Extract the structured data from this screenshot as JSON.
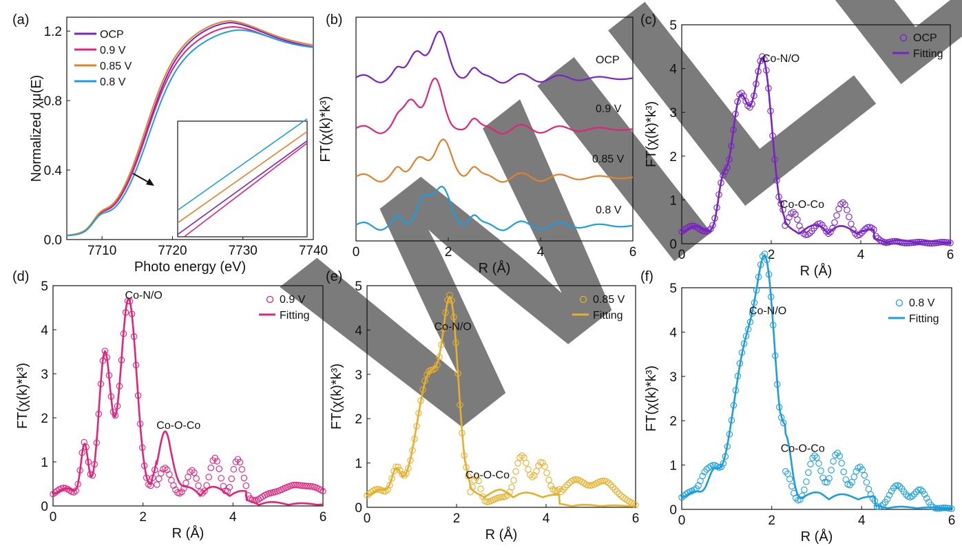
{
  "watermark": "WILEY",
  "chart_data": [
    {
      "id": "a",
      "panel_label": "(a)",
      "type": "line",
      "title": "",
      "xlabel": "Photo energy (eV)",
      "ylabel": "Normalized χμ(E)",
      "xlim": [
        7705,
        7740
      ],
      "ylim": [
        0.0,
        1.28
      ],
      "xticks": [
        "7710",
        "7720",
        "7730",
        "7740"
      ],
      "yticks": [
        "0.0",
        "0.4",
        "0.8",
        "1.2"
      ],
      "legend_position": "top-left",
      "series": [
        {
          "name": "OCP",
          "color": "#7a22c4",
          "edge": 7716.3,
          "plateau": 1.12,
          "peak": 1.155,
          "peakE": 7728.3,
          "end": 1.04
        },
        {
          "name": "0.9 V",
          "color": "#e0237d",
          "edge": 7716.3,
          "plateau": 1.09,
          "peak": 1.13,
          "peakE": 7728.6,
          "end": 1.04
        },
        {
          "name": "0.85 V",
          "color": "#e0822b",
          "edge": 7716.1,
          "plateau": 1.13,
          "peak": 1.165,
          "peakE": 7728.2,
          "end": 1.05
        },
        {
          "name": "0.8 V",
          "color": "#1a9ee0",
          "edge": 7716.6,
          "plateau": 1.07,
          "peak": 1.11,
          "peakE": 7729.5,
          "end": 1.04
        }
      ],
      "annotations": [
        "arrow pointing to zoomed edge region",
        "inset: magnified absorption edge"
      ]
    },
    {
      "id": "b",
      "panel_label": "(b)",
      "type": "line",
      "xlabel": "R (Å)",
      "ylabel": "FT(χ(k)*k³)",
      "xlim": [
        0,
        6
      ],
      "xticks": [
        "0",
        "2",
        "4",
        "6"
      ],
      "series": [
        {
          "name": "OCP",
          "color": "#7a22c4",
          "offset": 3.2,
          "s1": 0.6,
          "p1": 1.3,
          "s2": 0.9,
          "p2": 1.82
        },
        {
          "name": "0.9 V",
          "color": "#e0237d",
          "offset": 2.2,
          "s1": 0.65,
          "p1": 1.2,
          "s2": 0.95,
          "p2": 1.72
        },
        {
          "name": "0.85 V",
          "color": "#e0822b",
          "offset": 1.25,
          "s1": 0.45,
          "p1": 1.35,
          "s2": 0.75,
          "p2": 1.9
        },
        {
          "name": "0.8 V",
          "color": "#1a9ee0",
          "offset": 0.3,
          "s1": 0.55,
          "p1": 1.45,
          "s2": 0.75,
          "p2": 1.88
        }
      ]
    },
    {
      "id": "c",
      "panel_label": "(c)",
      "type": "line",
      "xlabel": "R (Å)",
      "ylabel": "FT(χ(k)*k³)",
      "xlim": [
        0,
        6
      ],
      "ylim": [
        0,
        5
      ],
      "xticks": [
        "0",
        "2",
        "4",
        "6"
      ],
      "yticks": [
        "0",
        "1",
        "2",
        "3",
        "4",
        "5"
      ],
      "color": "#7a22c4",
      "legend": [
        "OCP",
        "Fitting"
      ],
      "peak_label": "Co-N/O",
      "peak_label_at": [
        1.8,
        4.15
      ],
      "shell_label": "Co-O-Co",
      "shell_label_at": [
        2.2,
        0.82
      ],
      "legend_position": "top-right",
      "peaks": [
        [
          1.3,
          3.0,
          0.2
        ],
        [
          1.82,
          3.88,
          0.2
        ],
        [
          0.9,
          0.85,
          0.1
        ]
      ],
      "ripple_amp": 0.28,
      "ripple_center": 3.2,
      "exp_bumps": [
        [
          2.5,
          0.55,
          0.12
        ],
        [
          3.6,
          0.72,
          0.14
        ],
        [
          3.1,
          0.25,
          0.12
        ],
        [
          4.2,
          0.2,
          0.15
        ]
      ]
    },
    {
      "id": "d",
      "panel_label": "(d)",
      "type": "line",
      "xlabel": "R (Å)",
      "ylabel": "FT(χ(k)*k³)",
      "xlim": [
        0,
        6
      ],
      "ylim": [
        0,
        5
      ],
      "xticks": [
        "0",
        "2",
        "4",
        "6"
      ],
      "yticks": [
        "0",
        "1",
        "2",
        "3",
        "4",
        "5"
      ],
      "color": "#e0237d",
      "legend": [
        "0.9 V",
        "Fitting"
      ],
      "peak_label": "Co-N/O",
      "peak_label_at": [
        1.6,
        4.7
      ],
      "shell_label": "Co-O-Co",
      "shell_label_at": [
        2.3,
        1.75
      ],
      "legend_position": "top-right",
      "peaks": [
        [
          1.15,
          3.2,
          0.13
        ],
        [
          1.68,
          4.45,
          0.18
        ],
        [
          2.5,
          1.55,
          0.15
        ],
        [
          0.7,
          1.15,
          0.08
        ]
      ],
      "ripple_amp": 0.3,
      "ripple_center": 3.3,
      "exp_bumps": [
        [
          3.6,
          0.85,
          0.12
        ],
        [
          4.1,
          0.85,
          0.12
        ],
        [
          3.1,
          0.6,
          0.12
        ],
        [
          5.5,
          0.45,
          0.6
        ]
      ]
    },
    {
      "id": "e",
      "panel_label": "(e)",
      "type": "line",
      "xlabel": "R (Å)",
      "ylabel": "FT(χ(k)*k³)",
      "xlim": [
        0,
        6
      ],
      "ylim": [
        0,
        5
      ],
      "xticks": [
        "0",
        "2",
        "4",
        "6"
      ],
      "yticks": [
        "0",
        "1",
        "2",
        "3",
        "4",
        "5"
      ],
      "color": "#e6b02a",
      "legend": [
        "0.85 V",
        "Fitting"
      ],
      "peak_label": "Co-N/O",
      "peak_label_at": [
        1.5,
        4.0
      ],
      "shell_label": "Co-O-Co",
      "shell_label_at": [
        2.2,
        0.65
      ],
      "legend_position": "top-right",
      "peaks": [
        [
          1.4,
          2.75,
          0.28
        ],
        [
          1.88,
          3.8,
          0.17
        ],
        [
          0.65,
          0.55,
          0.1
        ]
      ],
      "ripple_amp": 0.2,
      "ripple_center": 3.0,
      "exp_bumps": [
        [
          3.45,
          1.0,
          0.15
        ],
        [
          3.9,
          0.9,
          0.13
        ],
        [
          4.6,
          0.55,
          0.25
        ],
        [
          5.3,
          0.55,
          0.3
        ],
        [
          2.45,
          0.5,
          0.08
        ]
      ]
    },
    {
      "id": "f",
      "panel_label": "(f)",
      "type": "line",
      "xlabel": "R (Å)",
      "ylabel": "FT(χ(k)*k³)",
      "xlim": [
        0,
        6
      ],
      "ylim": [
        0,
        5
      ],
      "xticks": [
        "0",
        "2",
        "4",
        "6"
      ],
      "yticks": [
        "0",
        "1",
        "2",
        "3",
        "4",
        "5"
      ],
      "color": "#1a9ee0",
      "legend": [
        "0.8 V",
        "Fitting"
      ],
      "peak_label": "Co-N/O",
      "peak_label_at": [
        1.5,
        4.4
      ],
      "shell_label": "Co-O-Co",
      "shell_label_at": [
        2.2,
        1.3
      ],
      "legend_position": "top-right",
      "peaks": [
        [
          1.45,
          3.4,
          0.3
        ],
        [
          1.9,
          4.2,
          0.2
        ],
        [
          2.35,
          1.05,
          0.1
        ],
        [
          0.7,
          0.5,
          0.12
        ]
      ],
      "ripple_amp": 0.2,
      "ripple_center": 3.1,
      "exp_bumps": [
        [
          2.95,
          1.0,
          0.15
        ],
        [
          3.45,
          1.1,
          0.14
        ],
        [
          3.95,
          0.85,
          0.14
        ],
        [
          4.8,
          0.5,
          0.18
        ],
        [
          5.3,
          0.4,
          0.14
        ],
        [
          0.5,
          0.4,
          0.1
        ]
      ]
    }
  ]
}
